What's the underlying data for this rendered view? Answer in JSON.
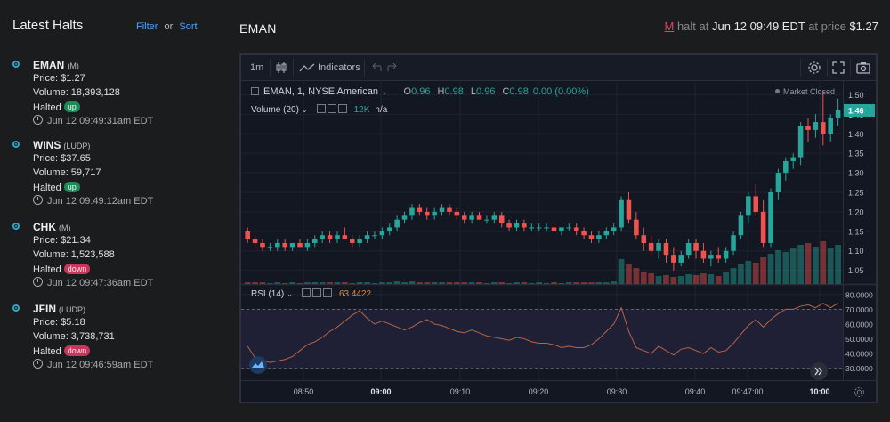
{
  "sidebar": {
    "title": "Latest Halts",
    "filter_label": "Filter",
    "or_label": "or",
    "sort_label": "Sort",
    "halts": [
      {
        "symbol": "EMAN",
        "exchange": "(M)",
        "price": "Price: $1.27",
        "volume": "Volume: 18,393,128",
        "halted": "Halted",
        "status": "up",
        "time": "Jun 12 09:49:31am EDT"
      },
      {
        "symbol": "WINS",
        "exchange": "(LUDP)",
        "price": "Price: $37.65",
        "volume": "Volume: 59,717",
        "halted": "Halted",
        "status": "up",
        "time": "Jun 12 09:49:12am EDT"
      },
      {
        "symbol": "CHK",
        "exchange": "(M)",
        "price": "Price: $21.34",
        "volume": "Volume: 1,523,588",
        "halted": "Halted",
        "status": "down",
        "time": "Jun 12 09:47:36am EDT"
      },
      {
        "symbol": "JFIN",
        "exchange": "(LUDP)",
        "price": "Price: $5.18",
        "volume": "Volume: 3,738,731",
        "halted": "Halted",
        "status": "down",
        "time": "Jun 12 09:46:59am EDT"
      }
    ]
  },
  "header": {
    "title": "EMAN",
    "halt_code": "M",
    "halt_text": "halt at",
    "halt_time": "Jun 12 09:49 EDT",
    "at_price_text": "at price",
    "halt_price": "$1.27"
  },
  "toolbar": {
    "interval": "1m",
    "indicators_label": "Indicators"
  },
  "legend": {
    "symbol": "EMAN, 1, NYSE American",
    "o_label": "O",
    "o_value": "0.96",
    "h_label": "H",
    "h_value": "0.98",
    "l_label": "L",
    "l_value": "0.96",
    "c_label": "C",
    "c_value": "0.98",
    "change": "0.00 (0.00%)",
    "volume_label": "Volume (20)",
    "volume_value": "12K",
    "volume_na": "n/a",
    "market_status": "Market Closed",
    "rsi_label": "RSI (14)",
    "rsi_value": "63.4422"
  },
  "colors": {
    "up": "#26a69a",
    "down": "#ef5350",
    "rsi": "#b5654a",
    "badge_up": "#1e8a5a",
    "badge_down": "#c9365b"
  },
  "chart_data": {
    "type": "candlestick",
    "price_ticks": [
      "1.50",
      "1.45",
      "1.40",
      "1.35",
      "1.30",
      "1.25",
      "1.20",
      "1.15",
      "1.10",
      "1.05"
    ],
    "current_price": "1.46",
    "rsi_ticks": [
      "80.0000",
      "70.0000",
      "60.0000",
      "50.0000",
      "40.0000",
      "30.0000"
    ],
    "x_ticks": [
      "08:50",
      "09:00",
      "09:10",
      "09:20",
      "09:30",
      "09:40",
      "09:47:00",
      "10:00"
    ],
    "x_ticks_bold": [
      "09:00",
      "10:00"
    ],
    "ohlc": [
      [
        1.15,
        1.16,
        1.12,
        1.13
      ],
      [
        1.13,
        1.14,
        1.11,
        1.12
      ],
      [
        1.12,
        1.13,
        1.1,
        1.11
      ],
      [
        1.11,
        1.12,
        1.1,
        1.11
      ],
      [
        1.11,
        1.13,
        1.1,
        1.12
      ],
      [
        1.12,
        1.13,
        1.1,
        1.11
      ],
      [
        1.11,
        1.12,
        1.1,
        1.12
      ],
      [
        1.12,
        1.13,
        1.11,
        1.11
      ],
      [
        1.11,
        1.13,
        1.1,
        1.12
      ],
      [
        1.12,
        1.14,
        1.11,
        1.13
      ],
      [
        1.13,
        1.15,
        1.12,
        1.14
      ],
      [
        1.14,
        1.15,
        1.12,
        1.13
      ],
      [
        1.13,
        1.15,
        1.12,
        1.14
      ],
      [
        1.14,
        1.16,
        1.13,
        1.13
      ],
      [
        1.13,
        1.14,
        1.11,
        1.12
      ],
      [
        1.12,
        1.14,
        1.11,
        1.13
      ],
      [
        1.13,
        1.15,
        1.12,
        1.14
      ],
      [
        1.14,
        1.15,
        1.13,
        1.14
      ],
      [
        1.14,
        1.16,
        1.13,
        1.15
      ],
      [
        1.15,
        1.17,
        1.14,
        1.16
      ],
      [
        1.16,
        1.19,
        1.15,
        1.18
      ],
      [
        1.18,
        1.2,
        1.17,
        1.19
      ],
      [
        1.19,
        1.22,
        1.18,
        1.21
      ],
      [
        1.21,
        1.22,
        1.19,
        1.2
      ],
      [
        1.2,
        1.21,
        1.18,
        1.19
      ],
      [
        1.19,
        1.21,
        1.18,
        1.2
      ],
      [
        1.2,
        1.22,
        1.19,
        1.21
      ],
      [
        1.21,
        1.22,
        1.19,
        1.2
      ],
      [
        1.2,
        1.21,
        1.18,
        1.19
      ],
      [
        1.19,
        1.2,
        1.17,
        1.18
      ],
      [
        1.18,
        1.2,
        1.17,
        1.19
      ],
      [
        1.19,
        1.2,
        1.18,
        1.18
      ],
      [
        1.18,
        1.19,
        1.17,
        1.18
      ],
      [
        1.18,
        1.2,
        1.17,
        1.19
      ],
      [
        1.19,
        1.2,
        1.16,
        1.17
      ],
      [
        1.17,
        1.18,
        1.15,
        1.16
      ],
      [
        1.16,
        1.18,
        1.15,
        1.17
      ],
      [
        1.17,
        1.18,
        1.15,
        1.16
      ],
      [
        1.16,
        1.17,
        1.15,
        1.16
      ],
      [
        1.16,
        1.17,
        1.15,
        1.16
      ],
      [
        1.16,
        1.17,
        1.15,
        1.16
      ],
      [
        1.16,
        1.17,
        1.15,
        1.15
      ],
      [
        1.15,
        1.16,
        1.14,
        1.16
      ],
      [
        1.16,
        1.17,
        1.15,
        1.16
      ],
      [
        1.16,
        1.17,
        1.14,
        1.15
      ],
      [
        1.15,
        1.16,
        1.13,
        1.14
      ],
      [
        1.14,
        1.15,
        1.12,
        1.13
      ],
      [
        1.13,
        1.15,
        1.12,
        1.14
      ],
      [
        1.14,
        1.16,
        1.13,
        1.15
      ],
      [
        1.15,
        1.17,
        1.14,
        1.16
      ],
      [
        1.16,
        1.24,
        1.15,
        1.23
      ],
      [
        1.23,
        1.25,
        1.17,
        1.18
      ],
      [
        1.18,
        1.2,
        1.13,
        1.14
      ],
      [
        1.14,
        1.16,
        1.1,
        1.12
      ],
      [
        1.12,
        1.14,
        1.09,
        1.1
      ],
      [
        1.1,
        1.13,
        1.08,
        1.12
      ],
      [
        1.12,
        1.13,
        1.07,
        1.09
      ],
      [
        1.09,
        1.11,
        1.05,
        1.07
      ],
      [
        1.07,
        1.1,
        1.06,
        1.09
      ],
      [
        1.09,
        1.13,
        1.08,
        1.12
      ],
      [
        1.12,
        1.13,
        1.08,
        1.1
      ],
      [
        1.1,
        1.12,
        1.07,
        1.08
      ],
      [
        1.08,
        1.1,
        1.06,
        1.09
      ],
      [
        1.09,
        1.11,
        1.07,
        1.08
      ],
      [
        1.08,
        1.11,
        1.07,
        1.1
      ],
      [
        1.1,
        1.15,
        1.09,
        1.14
      ],
      [
        1.14,
        1.2,
        1.13,
        1.19
      ],
      [
        1.19,
        1.25,
        1.17,
        1.24
      ],
      [
        1.24,
        1.27,
        1.19,
        1.2
      ],
      [
        1.2,
        1.23,
        1.11,
        1.12
      ],
      [
        1.12,
        1.26,
        1.11,
        1.25
      ],
      [
        1.25,
        1.31,
        1.23,
        1.3
      ],
      [
        1.3,
        1.34,
        1.28,
        1.33
      ],
      [
        1.33,
        1.35,
        1.31,
        1.34
      ],
      [
        1.34,
        1.43,
        1.32,
        1.42
      ],
      [
        1.42,
        1.44,
        1.38,
        1.41
      ],
      [
        1.41,
        1.45,
        1.39,
        1.43
      ],
      [
        1.43,
        1.51,
        1.37,
        1.4
      ],
      [
        1.4,
        1.45,
        1.38,
        1.44
      ],
      [
        1.44,
        1.49,
        1.42,
        1.46
      ]
    ],
    "volume": [
      2,
      2,
      2,
      1,
      2,
      1,
      2,
      1,
      2,
      2,
      2,
      2,
      2,
      2,
      1,
      2,
      2,
      1,
      2,
      2,
      3,
      2,
      3,
      2,
      2,
      2,
      2,
      2,
      2,
      2,
      2,
      2,
      1,
      2,
      2,
      1,
      2,
      2,
      1,
      2,
      1,
      2,
      1,
      2,
      2,
      2,
      2,
      2,
      2,
      3,
      28,
      22,
      18,
      14,
      12,
      9,
      10,
      8,
      9,
      11,
      10,
      12,
      11,
      9,
      13,
      18,
      22,
      26,
      24,
      30,
      34,
      38,
      36,
      40,
      44,
      46,
      42,
      48,
      40,
      44
    ],
    "rsi": [
      45,
      37,
      35,
      34,
      35,
      36,
      38,
      42,
      46,
      48,
      51,
      55,
      58,
      62,
      66,
      69,
      64,
      60,
      62,
      60,
      58,
      56,
      58,
      61,
      63,
      60,
      59,
      57,
      55,
      54,
      56,
      54,
      52,
      51,
      50,
      49,
      51,
      50,
      48,
      47,
      47,
      46,
      44,
      45,
      44,
      44,
      46,
      50,
      55,
      60,
      71,
      55,
      44,
      42,
      40,
      45,
      42,
      39,
      43,
      44,
      42,
      40,
      44,
      41,
      42,
      47,
      53,
      59,
      63,
      58,
      63,
      67,
      70,
      70,
      72,
      73,
      71,
      74,
      71,
      74
    ],
    "rsi_levels": [
      70,
      30
    ]
  }
}
